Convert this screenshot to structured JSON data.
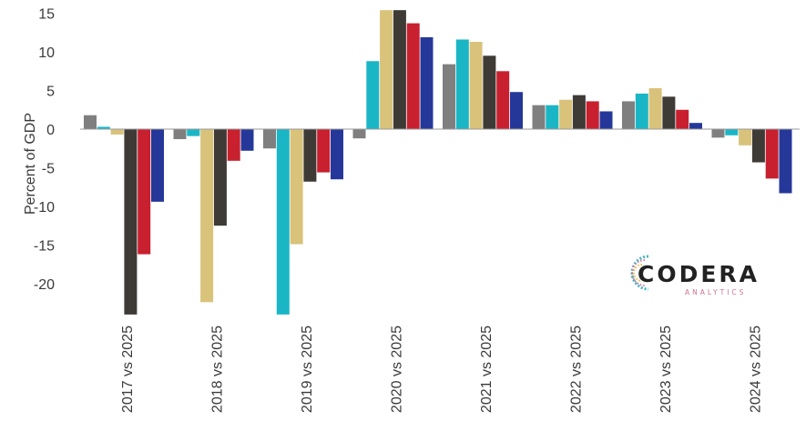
{
  "chart_data": {
    "type": "bar",
    "ylabel": "Percent of GDP",
    "ylim": [
      -24,
      15
    ],
    "yticks": [
      15,
      10,
      5,
      0,
      -5,
      -10,
      -15,
      -20
    ],
    "categories": [
      "2017 vs 2025",
      "2018 vs 2025",
      "2019 vs 2025",
      "2020 vs 2025",
      "2021 vs 2025",
      "2022 vs 2025",
      "2023 vs 2025",
      "2024 vs 2025"
    ],
    "series": [
      {
        "color": "#7f7f7f",
        "values": [
          1.8,
          -1.3,
          -2.5,
          -1.2,
          8.4,
          3.1,
          3.6,
          -1.1
        ]
      },
      {
        "color": "#1bb6c6",
        "values": [
          0.3,
          -0.9,
          -24.0,
          8.8,
          11.6,
          3.1,
          4.6,
          -0.8
        ]
      },
      {
        "color": "#d9c27a",
        "values": [
          -0.7,
          -22.4,
          -14.9,
          15.5,
          11.3,
          3.8,
          5.3,
          -2.1
        ]
      },
      {
        "color": "#3e3a36",
        "values": [
          -24.0,
          -12.5,
          -6.8,
          15.4,
          9.5,
          4.4,
          4.2,
          -4.3
        ]
      },
      {
        "color": "#c8202f",
        "values": [
          -16.2,
          -4.1,
          -5.6,
          13.7,
          7.5,
          3.6,
          2.5,
          -6.4
        ]
      },
      {
        "color": "#25389a",
        "values": [
          -9.4,
          -2.8,
          -6.5,
          11.9,
          4.8,
          2.3,
          0.8,
          -8.3
        ]
      }
    ],
    "grid": false
  },
  "logo": {
    "name": "CODERA",
    "tagline": "ANALYTICS"
  }
}
